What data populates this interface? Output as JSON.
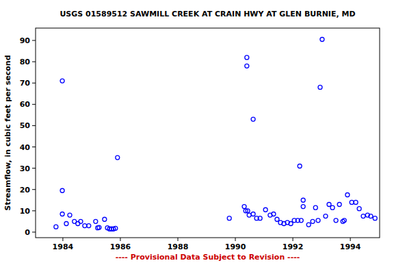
{
  "chart_data": {
    "type": "scatter",
    "title": "USGS 01589512 SAWMILL CREEK AT CRAIN HWY AT GLEN BURNIE, MD",
    "y_label": "Streamflow, in cubic feet per second",
    "annotation": "---- Provisional Data Subject to Revision ----",
    "x": [
      1983.76,
      1983.98,
      1983.98,
      1983.98,
      1984.12,
      1984.24,
      1984.4,
      1984.52,
      1984.62,
      1984.76,
      1984.9,
      1985.14,
      1985.21,
      1985.26,
      1985.45,
      1985.55,
      1985.62,
      1985.69,
      1985.76,
      1985.83,
      1985.9,
      1989.79,
      1990.31,
      1990.36,
      1990.4,
      1990.4,
      1990.43,
      1990.48,
      1990.62,
      1990.62,
      1990.74,
      1990.86,
      1991.05,
      1991.21,
      1991.33,
      1991.45,
      1991.57,
      1991.69,
      1991.81,
      1991.93,
      1992.05,
      1992.17,
      1992.24,
      1992.29,
      1992.36,
      1992.36,
      1992.55,
      1992.69,
      1992.79,
      1992.88,
      1992.95,
      1993.02,
      1993.14,
      1993.26,
      1993.38,
      1993.5,
      1993.62,
      1993.74,
      1993.79,
      1993.9,
      1994.05,
      1994.19,
      1994.31,
      1994.45,
      1994.6,
      1994.71,
      1994.86
    ],
    "values": [
      2.5,
      71,
      19.5,
      8.5,
      4,
      8,
      5,
      4,
      5,
      3,
      3,
      5,
      2,
      2.2,
      6,
      2,
      1.5,
      1.5,
      1.5,
      1.8,
      35,
      6.5,
      12,
      10,
      82,
      78,
      10,
      8,
      53,
      8.5,
      6.5,
      6.5,
      10.5,
      8,
      8.5,
      6,
      4.5,
      4,
      4.5,
      4,
      5.5,
      5.5,
      31,
      5.5,
      15,
      12,
      3.5,
      5,
      11.5,
      5.5,
      68,
      90.5,
      7.5,
      13,
      11.5,
      5.5,
      13,
      5,
      5.5,
      17.5,
      14,
      14,
      11,
      7.5,
      8,
      7.5,
      6.5
    ],
    "color": "#0000ff",
    "marker": "circle",
    "xlim": [
      1983.05,
      1995.02
    ],
    "ylim": [
      -2.6,
      95.8
    ],
    "xticks": [
      1984,
      1986,
      1988,
      1990,
      1992,
      1994
    ],
    "yticks": [
      0,
      10,
      20,
      30,
      40,
      50,
      60,
      70,
      80,
      90
    ],
    "grid": false
  }
}
